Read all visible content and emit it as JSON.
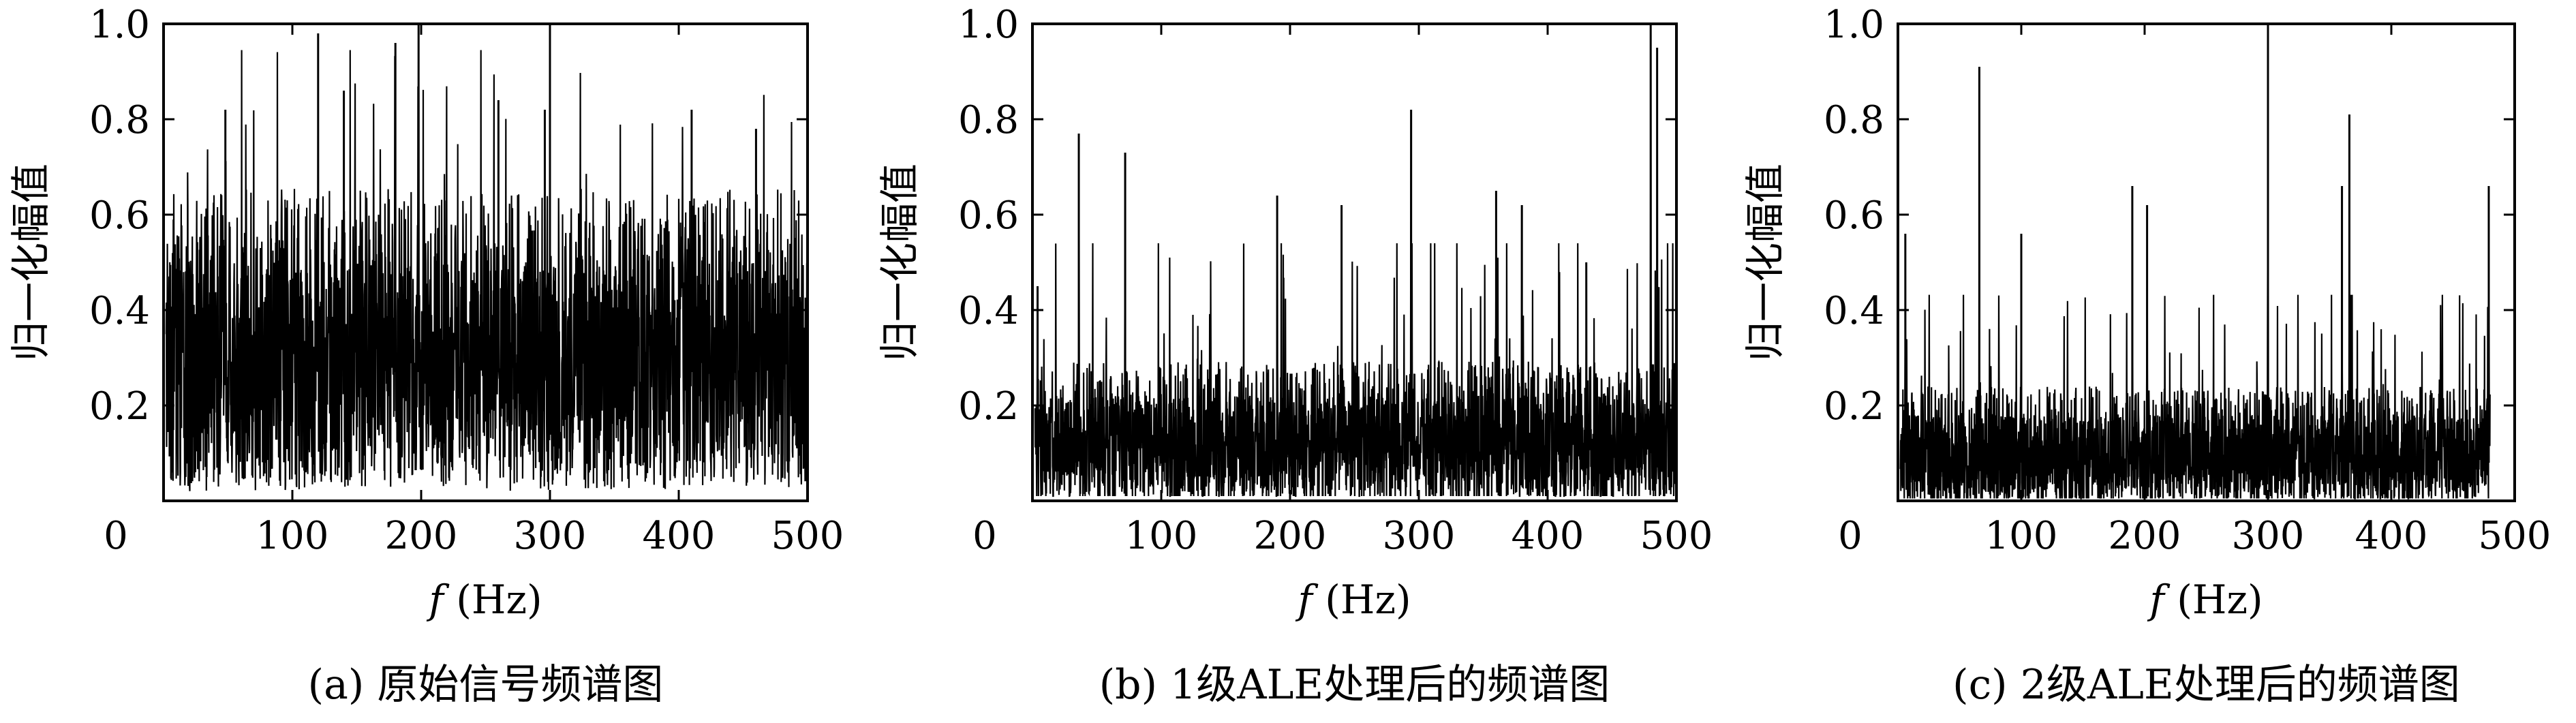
{
  "chart_data": [
    {
      "type": "line",
      "caption": "(a) 原始信号频谱图",
      "xlabel_var": "f",
      "xlabel_unit": "(Hz)",
      "ylabel": "归一化幅值",
      "xlim": [
        0,
        500
      ],
      "ylim": [
        0,
        1.0
      ],
      "xticks": [
        "0",
        "100",
        "200",
        "300",
        "400",
        "500"
      ],
      "yticks": [
        "0.2",
        "0.4",
        "0.6",
        "0.8",
        "1.0"
      ],
      "x_end": 500,
      "noise": {
        "base": 0.27,
        "spread": 0.24,
        "min": 0.02,
        "max": 0.7
      },
      "peaks": [
        {
          "x": 120,
          "y": 0.98
        },
        {
          "x": 180,
          "y": 0.96
        },
        {
          "x": 198,
          "y": 1.0
        },
        {
          "x": 300,
          "y": 1.0
        },
        {
          "x": 296,
          "y": 0.82
        },
        {
          "x": 48,
          "y": 0.82
        },
        {
          "x": 410,
          "y": 0.82
        },
        {
          "x": 140,
          "y": 0.86
        },
        {
          "x": 260,
          "y": 0.84
        },
        {
          "x": 460,
          "y": 0.78
        }
      ]
    },
    {
      "type": "line",
      "caption": "(b) 1级ALE处理后的频谱图",
      "xlabel_var": "f",
      "xlabel_unit": "(Hz)",
      "ylabel": "归一化幅值",
      "xlim": [
        0,
        500
      ],
      "ylim": [
        0,
        1.0
      ],
      "xticks": [
        "0",
        "100",
        "200",
        "300",
        "400",
        "500"
      ],
      "yticks": [
        "0.2",
        "0.4",
        "0.6",
        "0.8",
        "1.0"
      ],
      "x_end": 500,
      "noise": {
        "base": 0.1,
        "spread": 0.12,
        "min": 0.01,
        "max": 0.4
      },
      "peaks": [
        {
          "x": 36,
          "y": 0.77
        },
        {
          "x": 72,
          "y": 0.73
        },
        {
          "x": 190,
          "y": 0.64
        },
        {
          "x": 240,
          "y": 0.62
        },
        {
          "x": 294,
          "y": 0.82
        },
        {
          "x": 360,
          "y": 0.65
        },
        {
          "x": 380,
          "y": 0.62
        },
        {
          "x": 430,
          "y": 0.5
        },
        {
          "x": 480,
          "y": 1.0
        },
        {
          "x": 485,
          "y": 0.95
        },
        {
          "x": 4,
          "y": 0.45
        }
      ]
    },
    {
      "type": "line",
      "caption": "(c) 2级ALE处理后的频谱图",
      "xlabel_var": "f",
      "xlabel_unit": "(Hz)",
      "ylabel": "归一化幅值",
      "xlim": [
        0,
        500
      ],
      "ylim": [
        0,
        1.0
      ],
      "xticks": [
        "0",
        "100",
        "200",
        "300",
        "400",
        "500"
      ],
      "yticks": [
        "0.2",
        "0.4",
        "0.6",
        "0.8",
        "1.0"
      ],
      "x_end": 480,
      "noise": {
        "base": 0.08,
        "spread": 0.1,
        "min": 0.005,
        "max": 0.32
      },
      "peaks": [
        {
          "x": 66,
          "y": 0.91
        },
        {
          "x": 190,
          "y": 0.66
        },
        {
          "x": 202,
          "y": 0.62
        },
        {
          "x": 300,
          "y": 1.0
        },
        {
          "x": 366,
          "y": 0.81
        },
        {
          "x": 360,
          "y": 0.66
        },
        {
          "x": 479,
          "y": 0.66
        },
        {
          "x": 100,
          "y": 0.56
        },
        {
          "x": 6,
          "y": 0.56
        }
      ]
    }
  ]
}
